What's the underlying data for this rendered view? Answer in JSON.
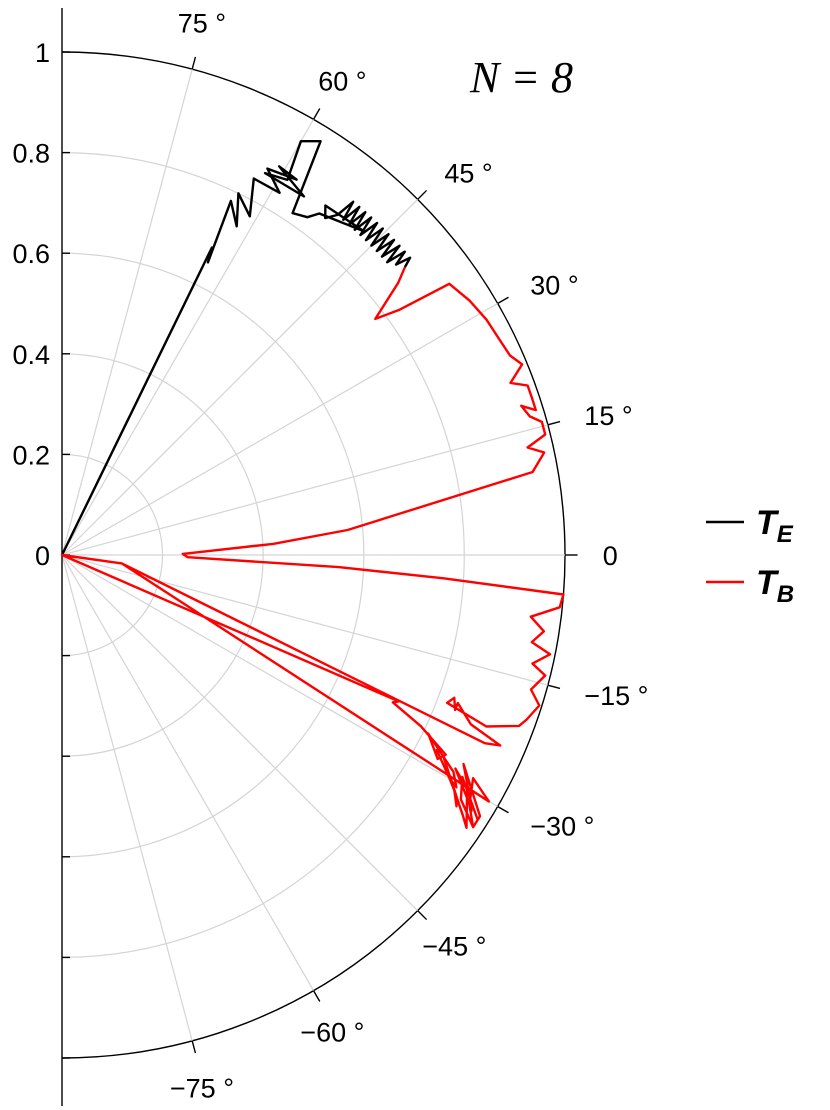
{
  "chart_data": {
    "type": "line",
    "subtype": "polar-half",
    "annotation": "N = 8",
    "r_ticks": [
      "0",
      "0.2",
      "0.4",
      "0.6",
      "0.8",
      "1"
    ],
    "r_tick_values": [
      0,
      0.2,
      0.4,
      0.6,
      0.8,
      1.0
    ],
    "r_lim": [
      0,
      1
    ],
    "theta_lim_deg": [
      -90,
      90
    ],
    "angle_labels": [
      {
        "deg": 75,
        "text": "75 °"
      },
      {
        "deg": 60,
        "text": "60 °"
      },
      {
        "deg": 45,
        "text": "45 °"
      },
      {
        "deg": 30,
        "text": "30 °"
      },
      {
        "deg": 15,
        "text": "15 °"
      },
      {
        "deg": 0,
        "text": "0"
      },
      {
        "deg": -15,
        "text": "−15 °"
      },
      {
        "deg": -30,
        "text": "−30 °"
      },
      {
        "deg": -45,
        "text": "−45 °"
      },
      {
        "deg": -60,
        "text": "−60 °"
      },
      {
        "deg": -75,
        "text": "−75 °"
      }
    ],
    "grid": true,
    "legend": {
      "position": "right",
      "entries": [
        {
          "label": "T",
          "sub": "E",
          "color": "#000000"
        },
        {
          "label": "T",
          "sub": "B",
          "color": "#ff0000"
        }
      ]
    },
    "series": [
      {
        "name": "T_E",
        "color": "#000000",
        "points": [
          [
            0,
            0
          ],
          [
            64,
            0.68
          ],
          [
            63.5,
            0.65
          ],
          [
            64.5,
            0.78
          ],
          [
            62,
            0.74
          ],
          [
            64,
            0.8
          ],
          [
            61,
            0.77
          ],
          [
            63,
            0.84
          ],
          [
            59,
            0.84
          ],
          [
            62,
            0.87
          ],
          [
            58,
            0.88
          ],
          [
            60.8,
            0.885
          ],
          [
            56,
            0.86
          ],
          [
            62,
            0.86
          ],
          [
            59,
            0.87
          ],
          [
            60,
            0.95
          ],
          [
            58,
            0.97
          ],
          [
            56,
            0.82
          ],
          [
            54,
            0.83
          ],
          [
            53,
            0.85
          ],
          [
            47,
            0.88
          ],
          [
            53,
            0.87
          ],
          [
            52,
            0.85
          ],
          [
            51,
            0.87
          ],
          [
            50.5,
            0.91
          ],
          [
            50,
            0.87
          ],
          [
            49.5,
            0.91
          ],
          [
            49,
            0.87
          ],
          [
            48.5,
            0.91
          ],
          [
            48,
            0.87
          ],
          [
            47.5,
            0.91
          ],
          [
            47,
            0.87
          ],
          [
            46.5,
            0.91
          ],
          [
            46,
            0.87
          ],
          [
            45.5,
            0.91
          ],
          [
            45,
            0.87
          ],
          [
            44.5,
            0.91
          ],
          [
            44,
            0.87
          ],
          [
            43.5,
            0.91
          ],
          [
            43,
            0.87
          ],
          [
            42.5,
            0.91
          ],
          [
            42,
            0.87
          ],
          [
            41.5,
            0.91
          ],
          [
            41,
            0.88
          ],
          [
            40.5,
            0.91
          ],
          [
            40,
            0.89
          ]
        ]
      },
      {
        "name": "T_B",
        "color": "#ff0000",
        "points": [
          [
            40,
            0.89
          ],
          [
            39,
            0.86
          ],
          [
            37,
            0.78
          ],
          [
            36,
            0.83
          ],
          [
            35,
            0.94
          ],
          [
            32,
            0.955
          ],
          [
            29,
            0.965
          ],
          [
            26,
            0.97
          ],
          [
            24,
            0.975
          ],
          [
            22.5,
            0.99
          ],
          [
            21,
            0.955
          ],
          [
            20,
            0.985
          ],
          [
            18.5,
            0.985
          ],
          [
            17,
            0.985
          ],
          [
            18,
            0.96
          ],
          [
            16.5,
            0.97
          ],
          [
            15.5,
            0.99
          ],
          [
            14,
            0.99
          ],
          [
            13,
            0.95
          ],
          [
            12,
            0.98
          ],
          [
            10,
            0.95
          ],
          [
            5,
            0.57
          ],
          [
            3,
            0.42
          ],
          [
            0.5,
            0.24
          ],
          [
            -1,
            0.25
          ],
          [
            -2.5,
            0.55
          ],
          [
            -3.5,
            0.76
          ],
          [
            -4.5,
            1.0
          ],
          [
            -6,
            0.995
          ],
          [
            -7.5,
            0.94
          ],
          [
            -9,
            0.97
          ],
          [
            -10.5,
            0.95
          ],
          [
            -11.5,
            0.99
          ],
          [
            -13,
            0.96
          ],
          [
            -14,
            0.99
          ],
          [
            -16,
            0.97
          ],
          [
            -17.5,
            0.995
          ],
          [
            -19.5,
            0.98
          ],
          [
            -20.5,
            0.97
          ],
          [
            -22,
            0.91
          ],
          [
            -21,
            0.82
          ],
          [
            -20,
            0.83
          ],
          [
            -21.5,
            0.84
          ],
          [
            -20.5,
            0.84
          ],
          [
            -22.5,
            0.88
          ],
          [
            -23.5,
            0.95
          ],
          [
            -24,
            0.92
          ],
          [
            -8,
            0.12
          ],
          [
            -4,
            0.0
          ],
          [
            -23.5,
            0.73
          ],
          [
            -24,
            0.72
          ],
          [
            -25.5,
            0.79
          ],
          [
            -27.5,
            0.86
          ],
          [
            -28.5,
            0.85
          ],
          [
            -26,
            0.81
          ],
          [
            -29,
            0.89
          ],
          [
            -30.5,
            0.91
          ],
          [
            -30,
            0.89
          ],
          [
            -27.5,
            0.84
          ],
          [
            -30,
            0.89
          ],
          [
            -31,
            0.91
          ],
          [
            -28,
            0.86
          ],
          [
            -31.5,
            0.92
          ],
          [
            -32.5,
            0.93
          ],
          [
            -31,
            0.91
          ],
          [
            -33,
            0.95
          ],
          [
            -34,
            0.97
          ],
          [
            -30,
            0.93
          ],
          [
            -28.5,
            0.89
          ],
          [
            -31,
            0.94
          ],
          [
            -32,
            0.96
          ],
          [
            -30.5,
            0.94
          ],
          [
            -27.5,
            0.9
          ],
          [
            -32,
            0.98
          ],
          [
            -33.5,
            0.98
          ],
          [
            -31.5,
            0.93
          ],
          [
            -29,
            0.91
          ],
          [
            -32.5,
            0.98
          ],
          [
            -33.5,
            0.98
          ],
          [
            -31.5,
            0.95
          ],
          [
            -28.5,
            0.93
          ],
          [
            -30,
            0.98
          ],
          [
            -8,
            0.12
          ],
          [
            -4,
            0.0
          ]
        ]
      }
    ]
  }
}
